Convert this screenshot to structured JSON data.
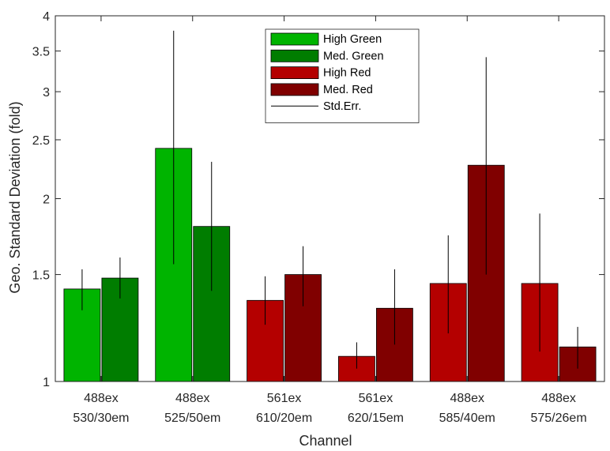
{
  "chart_data": {
    "type": "bar",
    "categories": [
      [
        "488ex",
        "530/30em"
      ],
      [
        "488ex",
        "525/50em"
      ],
      [
        "561ex",
        "610/20em"
      ],
      [
        "561ex",
        "620/15em"
      ],
      [
        "488ex",
        "585/40em"
      ],
      [
        "488ex",
        "575/26em"
      ]
    ],
    "xlabel": "Channel",
    "ylabel": "Geo. Standard Deviation (fold)",
    "yscale": "log",
    "ylim": [
      1,
      4
    ],
    "yticks": [
      1,
      1.5,
      2,
      2.5,
      3,
      3.5,
      4
    ],
    "ytick_labels": [
      "1",
      "1.5",
      "2",
      "2.5",
      "3",
      "3.5",
      "4"
    ],
    "grid": false,
    "legend_position": "top-center",
    "bars": [
      {
        "category_index": 0,
        "series": "High Green",
        "value": 1.42,
        "err_low": 1.31,
        "err_high": 1.53
      },
      {
        "category_index": 0,
        "series": "Med. Green",
        "value": 1.48,
        "err_low": 1.37,
        "err_high": 1.6
      },
      {
        "category_index": 1,
        "series": "High Green",
        "value": 2.42,
        "err_low": 1.56,
        "err_high": 3.78
      },
      {
        "category_index": 1,
        "series": "Med. Green",
        "value": 1.8,
        "err_low": 1.41,
        "err_high": 2.3
      },
      {
        "category_index": 2,
        "series": "High Red",
        "value": 1.36,
        "err_low": 1.24,
        "err_high": 1.49
      },
      {
        "category_index": 2,
        "series": "Med. Red",
        "value": 1.5,
        "err_low": 1.33,
        "err_high": 1.67
      },
      {
        "category_index": 3,
        "series": "High Red",
        "value": 1.1,
        "err_low": 1.05,
        "err_high": 1.16
      },
      {
        "category_index": 3,
        "series": "Med. Red",
        "value": 1.32,
        "err_low": 1.15,
        "err_high": 1.53
      },
      {
        "category_index": 4,
        "series": "High Red",
        "value": 1.45,
        "err_low": 1.2,
        "err_high": 1.74
      },
      {
        "category_index": 4,
        "series": "Med. Red",
        "value": 2.27,
        "err_low": 1.5,
        "err_high": 3.42
      },
      {
        "category_index": 5,
        "series": "High Red",
        "value": 1.45,
        "err_low": 1.12,
        "err_high": 1.89
      },
      {
        "category_index": 5,
        "series": "Med. Red",
        "value": 1.14,
        "err_low": 1.05,
        "err_high": 1.23
      }
    ],
    "legend": [
      {
        "label": "High Green",
        "kind": "bar",
        "color": "#00b400"
      },
      {
        "label": "Med. Green",
        "kind": "bar",
        "color": "#007d00"
      },
      {
        "label": "High Red",
        "kind": "bar",
        "color": "#b40000"
      },
      {
        "label": "Med. Red",
        "kind": "bar",
        "color": "#800000"
      },
      {
        "label": "Std.Err.",
        "kind": "line",
        "color": "#000000"
      }
    ],
    "colors": {
      "High Green": "#00b400",
      "Med. Green": "#007d00",
      "High Red": "#b40000",
      "Med. Red": "#800000",
      "error_bar": "#000000",
      "axis": "#262626"
    }
  }
}
